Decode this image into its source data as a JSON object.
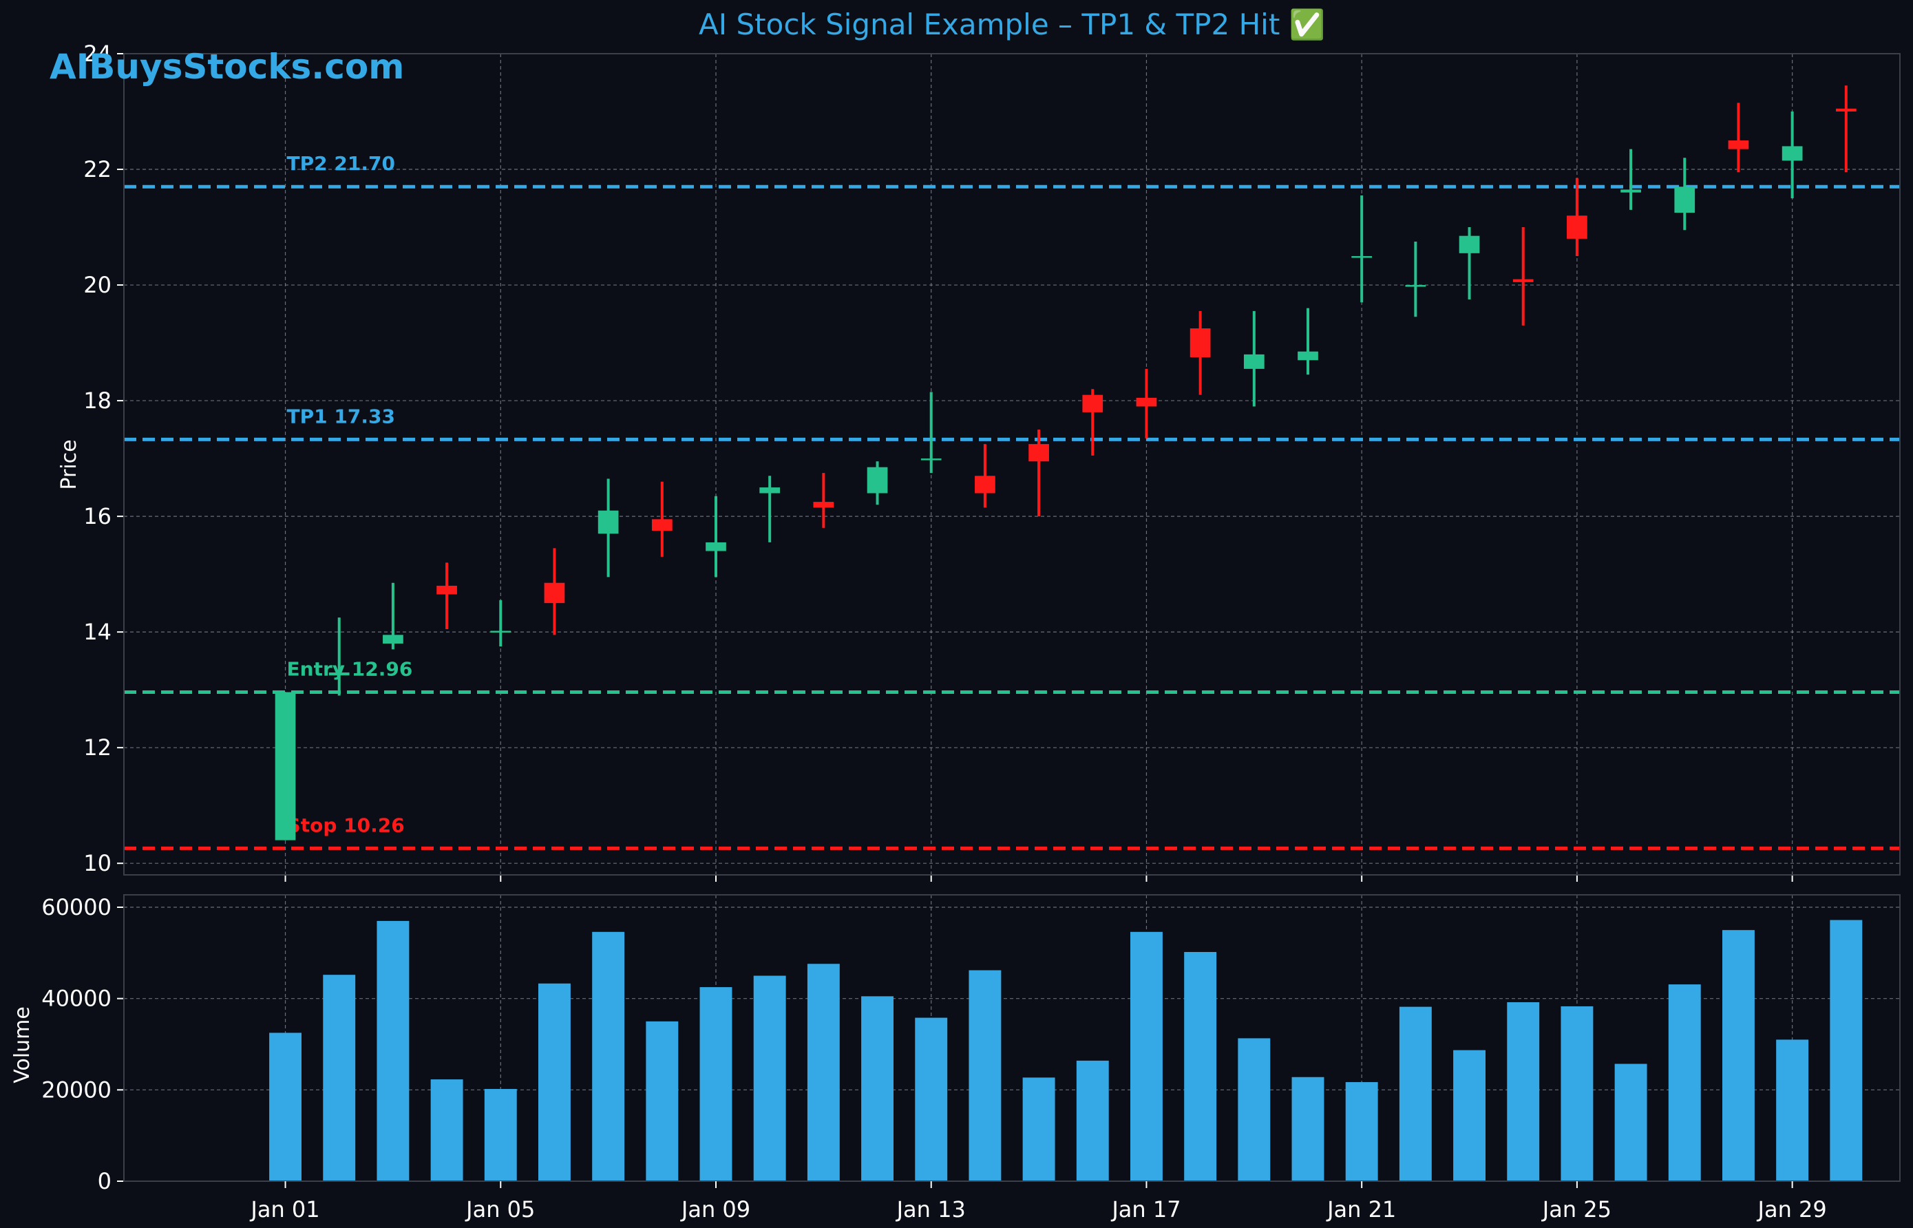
{
  "page": {
    "title": "AI Stock Signal Example – TP1 & TP2 Hit ✅",
    "watermark": "AIBuysStocks.com"
  },
  "colors": {
    "background": "#0b0e17",
    "grid": "#8a8f99",
    "axis_text": "#ffffff",
    "title": "#35a8e6",
    "up": "#26c28d",
    "down": "#ff1a1a",
    "target": "#35a8e6",
    "entry": "#26c28d",
    "stop": "#ff1a1a",
    "volume": "#35a8e6"
  },
  "chart_data": [
    {
      "type": "candlestick",
      "ylabel": "Price",
      "ylim": [
        9.8,
        24
      ],
      "yticks": [
        10,
        12,
        14,
        16,
        18,
        20,
        22,
        24
      ],
      "grid": true,
      "x_range": [
        "2023-12-29",
        "2024-01-31"
      ],
      "xticks": [
        {
          "date": "2024-01-01",
          "label": "Jan 01"
        },
        {
          "date": "2024-01-05",
          "label": "Jan 05"
        },
        {
          "date": "2024-01-09",
          "label": "Jan 09"
        },
        {
          "date": "2024-01-13",
          "label": "Jan 13"
        },
        {
          "date": "2024-01-17",
          "label": "Jan 17"
        },
        {
          "date": "2024-01-21",
          "label": "Jan 21"
        },
        {
          "date": "2024-01-25",
          "label": "Jan 25"
        },
        {
          "date": "2024-01-29",
          "label": "Jan 29"
        }
      ],
      "candles": [
        {
          "date": "2024-01-01",
          "open": 10.4,
          "high": 12.96,
          "low": 10.4,
          "close": 12.96
        },
        {
          "date": "2024-01-02",
          "open": 13.25,
          "high": 14.25,
          "low": 12.9,
          "close": 13.3
        },
        {
          "date": "2024-01-03",
          "open": 13.8,
          "high": 14.85,
          "low": 13.7,
          "close": 13.95
        },
        {
          "date": "2024-01-04",
          "open": 14.8,
          "high": 15.2,
          "low": 14.05,
          "close": 14.65
        },
        {
          "date": "2024-01-05",
          "open": 14.0,
          "high": 14.55,
          "low": 13.75,
          "close": 14.02
        },
        {
          "date": "2024-01-06",
          "open": 14.85,
          "high": 15.45,
          "low": 13.95,
          "close": 14.5
        },
        {
          "date": "2024-01-07",
          "open": 15.7,
          "high": 16.65,
          "low": 14.95,
          "close": 16.1
        },
        {
          "date": "2024-01-08",
          "open": 15.95,
          "high": 16.6,
          "low": 15.3,
          "close": 15.75
        },
        {
          "date": "2024-01-09",
          "open": 15.4,
          "high": 16.35,
          "low": 14.95,
          "close": 15.55
        },
        {
          "date": "2024-01-10",
          "open": 16.4,
          "high": 16.7,
          "low": 15.55,
          "close": 16.5
        },
        {
          "date": "2024-01-11",
          "open": 16.25,
          "high": 16.75,
          "low": 15.8,
          "close": 16.15
        },
        {
          "date": "2024-01-12",
          "open": 16.4,
          "high": 16.95,
          "low": 16.2,
          "close": 16.85
        },
        {
          "date": "2024-01-13",
          "open": 17.0,
          "high": 18.15,
          "low": 16.75,
          "close": 17.0
        },
        {
          "date": "2024-01-14",
          "open": 16.7,
          "high": 17.25,
          "low": 16.15,
          "close": 16.4
        },
        {
          "date": "2024-01-15",
          "open": 17.25,
          "high": 17.5,
          "low": 16.0,
          "close": 16.95
        },
        {
          "date": "2024-01-16",
          "open": 18.1,
          "high": 18.2,
          "low": 17.05,
          "close": 17.8
        },
        {
          "date": "2024-01-17",
          "open": 18.05,
          "high": 18.55,
          "low": 17.35,
          "close": 17.9
        },
        {
          "date": "2024-01-18",
          "open": 19.25,
          "high": 19.55,
          "low": 18.1,
          "close": 18.75
        },
        {
          "date": "2024-01-19",
          "open": 18.55,
          "high": 19.55,
          "low": 17.9,
          "close": 18.8
        },
        {
          "date": "2024-01-20",
          "open": 18.7,
          "high": 19.6,
          "low": 18.45,
          "close": 18.85
        },
        {
          "date": "2024-01-21",
          "open": 20.5,
          "high": 21.55,
          "low": 19.7,
          "close": 20.5
        },
        {
          "date": "2024-01-22",
          "open": 20.0,
          "high": 20.75,
          "low": 19.45,
          "close": 20.0
        },
        {
          "date": "2024-01-23",
          "open": 20.55,
          "high": 21.0,
          "low": 19.75,
          "close": 20.85
        },
        {
          "date": "2024-01-24",
          "open": 20.1,
          "high": 21.0,
          "low": 19.3,
          "close": 20.05
        },
        {
          "date": "2024-01-25",
          "open": 21.2,
          "high": 21.85,
          "low": 20.5,
          "close": 20.8
        },
        {
          "date": "2024-01-26",
          "open": 21.6,
          "high": 22.35,
          "low": 21.3,
          "close": 21.65
        },
        {
          "date": "2024-01-27",
          "open": 21.25,
          "high": 22.2,
          "low": 20.95,
          "close": 21.7
        },
        {
          "date": "2024-01-28",
          "open": 22.5,
          "high": 23.15,
          "low": 21.95,
          "close": 22.35
        },
        {
          "date": "2024-01-29",
          "open": 22.15,
          "high": 23.0,
          "low": 21.5,
          "close": 22.4
        },
        {
          "date": "2024-01-30",
          "open": 23.05,
          "high": 23.45,
          "low": 21.95,
          "close": 23.0
        }
      ],
      "levels": [
        {
          "label": "TP2 21.70",
          "value": 21.7,
          "role": "target"
        },
        {
          "label": "TP1 17.33",
          "value": 17.33,
          "role": "target"
        },
        {
          "label": "Entry 12.96",
          "value": 12.96,
          "role": "entry"
        },
        {
          "label": "Stop 10.26",
          "value": 10.26,
          "role": "stop"
        }
      ]
    },
    {
      "type": "bar",
      "ylabel": "Volume",
      "ylim": [
        0,
        60000
      ],
      "yticks": [
        0,
        20000,
        40000,
        60000
      ],
      "grid": true,
      "dates": [
        "2024-01-01",
        "2024-01-02",
        "2024-01-03",
        "2024-01-04",
        "2024-01-05",
        "2024-01-06",
        "2024-01-07",
        "2024-01-08",
        "2024-01-09",
        "2024-01-10",
        "2024-01-11",
        "2024-01-12",
        "2024-01-13",
        "2024-01-14",
        "2024-01-15",
        "2024-01-16",
        "2024-01-17",
        "2024-01-18",
        "2024-01-19",
        "2024-01-20",
        "2024-01-21",
        "2024-01-22",
        "2024-01-23",
        "2024-01-24",
        "2024-01-25",
        "2024-01-26",
        "2024-01-27",
        "2024-01-28",
        "2024-01-29",
        "2024-01-30"
      ],
      "values": [
        32500,
        45200,
        57000,
        22300,
        20200,
        43300,
        54600,
        35000,
        42500,
        45000,
        47600,
        40500,
        35800,
        46200,
        22700,
        26400,
        54600,
        50200,
        31300,
        22800,
        21700,
        38200,
        28700,
        39200,
        38300,
        25700,
        43100,
        55000,
        31000,
        57200
      ]
    }
  ]
}
